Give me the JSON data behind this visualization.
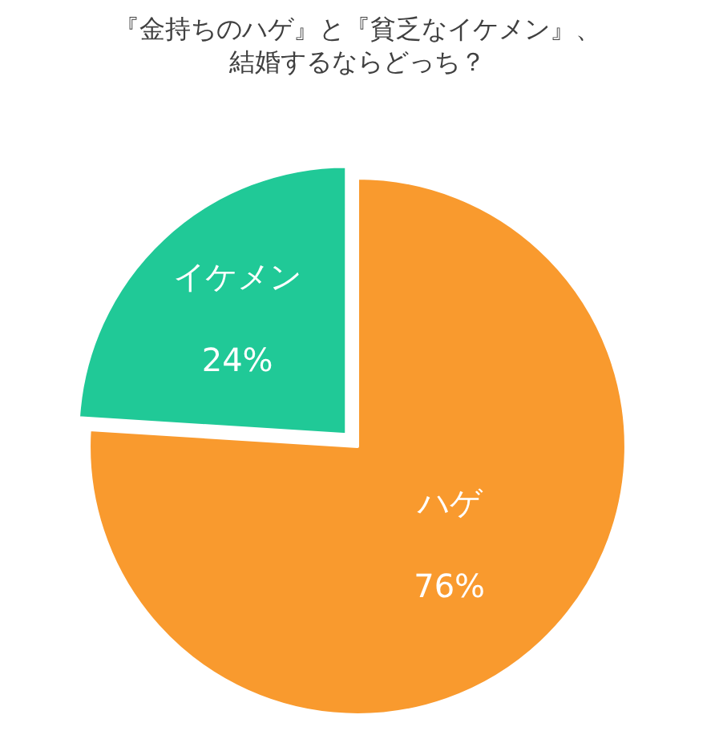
{
  "chart_data": {
    "type": "pie",
    "title": "『金持ちのハゲ』と『貧乏なイケメン』、結婚するならどっち？",
    "categories": [
      "ハゲ",
      "イケメン"
    ],
    "values": [
      76,
      24
    ],
    "value_labels": [
      "76%",
      "24%"
    ],
    "colors": [
      "#f99a2e",
      "#20c997"
    ],
    "legend": false
  }
}
